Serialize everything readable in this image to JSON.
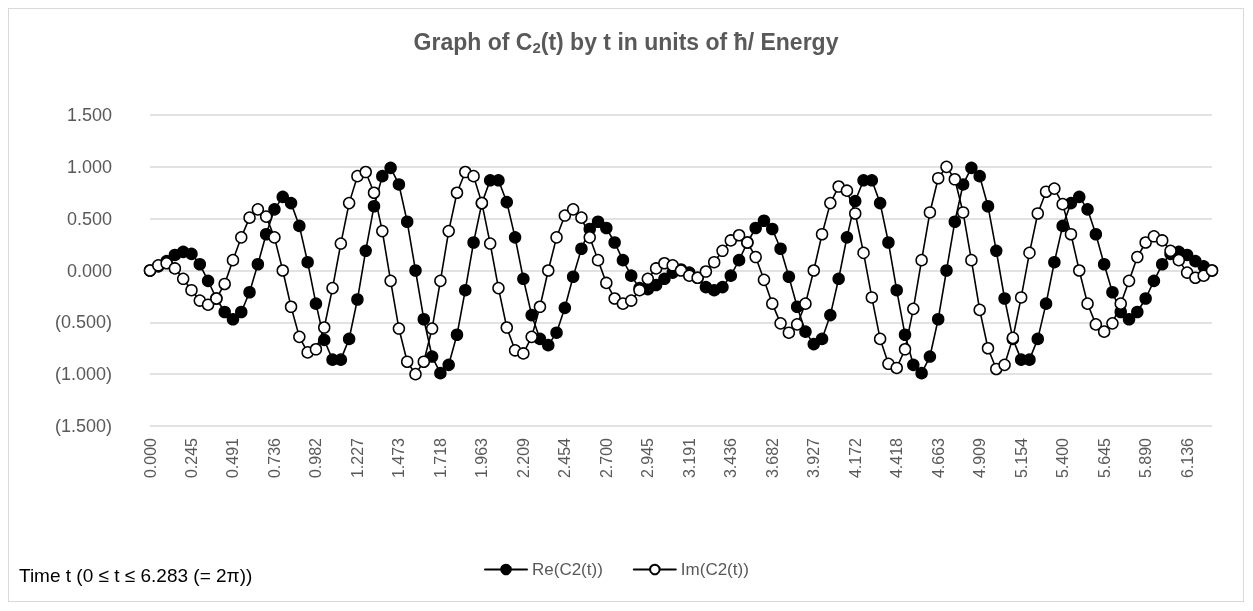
{
  "chart_data": {
    "type": "line",
    "title": "Graph of C$_{2}$(t) by t in units of ħ/ Energy",
    "xlabel": "Time t (0 ≤ t ≤ 6.283 (= 2π))",
    "categories": [
      "0.000",
      null,
      null,
      null,
      null,
      "0.245",
      null,
      null,
      null,
      null,
      "0.491",
      null,
      null,
      null,
      null,
      "0.736",
      null,
      null,
      null,
      null,
      "0.982",
      null,
      null,
      null,
      null,
      "1.227",
      null,
      null,
      null,
      null,
      "1.473",
      null,
      null,
      null,
      null,
      "1.718",
      null,
      null,
      null,
      null,
      "1.963",
      null,
      null,
      null,
      null,
      "2.209",
      null,
      null,
      null,
      null,
      "2.454",
      null,
      null,
      null,
      null,
      "2.700",
      null,
      null,
      null,
      null,
      "2.945",
      null,
      null,
      null,
      null,
      "3.191",
      null,
      null,
      null,
      null,
      "3.436",
      null,
      null,
      null,
      null,
      "3.682",
      null,
      null,
      null,
      null,
      "3.927",
      null,
      null,
      null,
      null,
      "4.172",
      null,
      null,
      null,
      null,
      "4.418",
      null,
      null,
      null,
      null,
      "4.663",
      null,
      null,
      null,
      null,
      "4.909",
      null,
      null,
      null,
      null,
      "5.154",
      null,
      null,
      null,
      null,
      "5.400",
      null,
      null,
      null,
      null,
      "5.645",
      null,
      null,
      null,
      null,
      "5.890",
      null,
      null,
      null,
      null,
      "6.136",
      null,
      null,
      null
    ],
    "series": [
      {
        "name": "Re(C2(t))",
        "color": "#000000",
        "marker": "circle",
        "values": [
          0,
          0.04,
          0.09,
          0.15,
          0.18,
          0.16,
          0.06,
          -0.1,
          -0.27,
          -0.4,
          -0.47,
          -0.4,
          -0.21,
          0.06,
          0.35,
          0.59,
          0.71,
          0.65,
          0.43,
          0.08,
          -0.32,
          -0.67,
          -0.86,
          -0.86,
          -0.66,
          -0.28,
          0.19,
          0.62,
          0.91,
          0.99,
          0.83,
          0.47,
          0,
          -0.47,
          -0.83,
          -0.99,
          -0.91,
          -0.62,
          -0.19,
          0.27,
          0.65,
          0.87,
          0.87,
          0.66,
          0.32,
          -0.08,
          -0.43,
          -0.66,
          -0.72,
          -0.6,
          -0.36,
          -0.06,
          0.21,
          0.4,
          0.47,
          0.41,
          0.27,
          0.1,
          -0.05,
          -0.17,
          -0.18,
          -0.14,
          -0.08,
          -0.02,
          0.01,
          -0.02,
          -0.07,
          -0.16,
          -0.19,
          -0.16,
          -0.05,
          0.1,
          0.27,
          0.41,
          0.48,
          0.4,
          0.21,
          -0.06,
          -0.35,
          -0.59,
          -0.71,
          -0.66,
          -0.43,
          -0.08,
          0.32,
          0.67,
          0.87,
          0.87,
          0.65,
          0.27,
          -0.19,
          -0.62,
          -0.91,
          -0.99,
          -0.83,
          -0.47,
          0,
          0.47,
          0.83,
          0.99,
          0.91,
          0.62,
          0.19,
          -0.27,
          -0.66,
          -0.86,
          -0.86,
          -0.66,
          -0.32,
          0.08,
          0.43,
          0.65,
          0.71,
          0.59,
          0.35,
          0.06,
          -0.21,
          -0.4,
          -0.47,
          -0.4,
          -0.27,
          -0.1,
          0.06,
          0.16,
          0.18,
          0.15,
          0.09,
          0.04,
          0
        ]
      },
      {
        "name": "Im(C2(t))",
        "color": "#000000",
        "marker": "open circle",
        "values": [
          0,
          0.05,
          0.07,
          0.02,
          -0.08,
          -0.19,
          -0.29,
          -0.33,
          -0.27,
          -0.13,
          0.1,
          0.32,
          0.51,
          0.59,
          0.52,
          0.32,
          0,
          -0.35,
          -0.64,
          -0.79,
          -0.76,
          -0.55,
          -0.17,
          0.26,
          0.65,
          0.91,
          0.95,
          0.75,
          0.38,
          -0.1,
          -0.56,
          -0.88,
          -1,
          -0.88,
          -0.56,
          -0.1,
          0.38,
          0.75,
          0.95,
          0.91,
          0.65,
          0.26,
          -0.17,
          -0.55,
          -0.77,
          -0.8,
          -0.64,
          -0.35,
          0,
          0.32,
          0.53,
          0.59,
          0.51,
          0.32,
          0.1,
          -0.12,
          -0.27,
          -0.32,
          -0.29,
          -0.19,
          -0.08,
          0.02,
          0.07,
          0.05,
          0,
          -0.05,
          -0.07,
          -0.01,
          0.08,
          0.19,
          0.29,
          0.34,
          0.27,
          0.13,
          -0.09,
          -0.32,
          -0.51,
          -0.6,
          -0.52,
          -0.32,
          0,
          0.35,
          0.65,
          0.81,
          0.77,
          0.55,
          0.17,
          -0.26,
          -0.66,
          -0.9,
          -0.94,
          -0.76,
          -0.37,
          0.1,
          0.56,
          0.89,
          1,
          0.88,
          0.56,
          0.1,
          -0.38,
          -0.75,
          -0.95,
          -0.91,
          -0.65,
          -0.26,
          0.17,
          0.55,
          0.76,
          0.79,
          0.64,
          0.35,
          0,
          -0.32,
          -0.52,
          -0.59,
          -0.51,
          -0.32,
          -0.1,
          0.13,
          0.27,
          0.33,
          0.29,
          0.19,
          0.1,
          -0.02,
          -0.07,
          -0.05,
          0
        ]
      }
    ],
    "ylim": [
      -1.5,
      1.5
    ],
    "yticks": [
      {
        "value": -1.5,
        "label": "(1.500)"
      },
      {
        "value": -1,
        "label": "(1.000)"
      },
      {
        "value": -0.5,
        "label": "(0.500)"
      },
      {
        "value": 0,
        "label": "0.000"
      },
      {
        "value": 0.5,
        "label": "0.500"
      },
      {
        "value": 1,
        "label": "1.000"
      },
      {
        "value": 1.5,
        "label": "1.500"
      }
    ],
    "grid": "y",
    "legend": "bottom",
    "line_style": "solid"
  }
}
